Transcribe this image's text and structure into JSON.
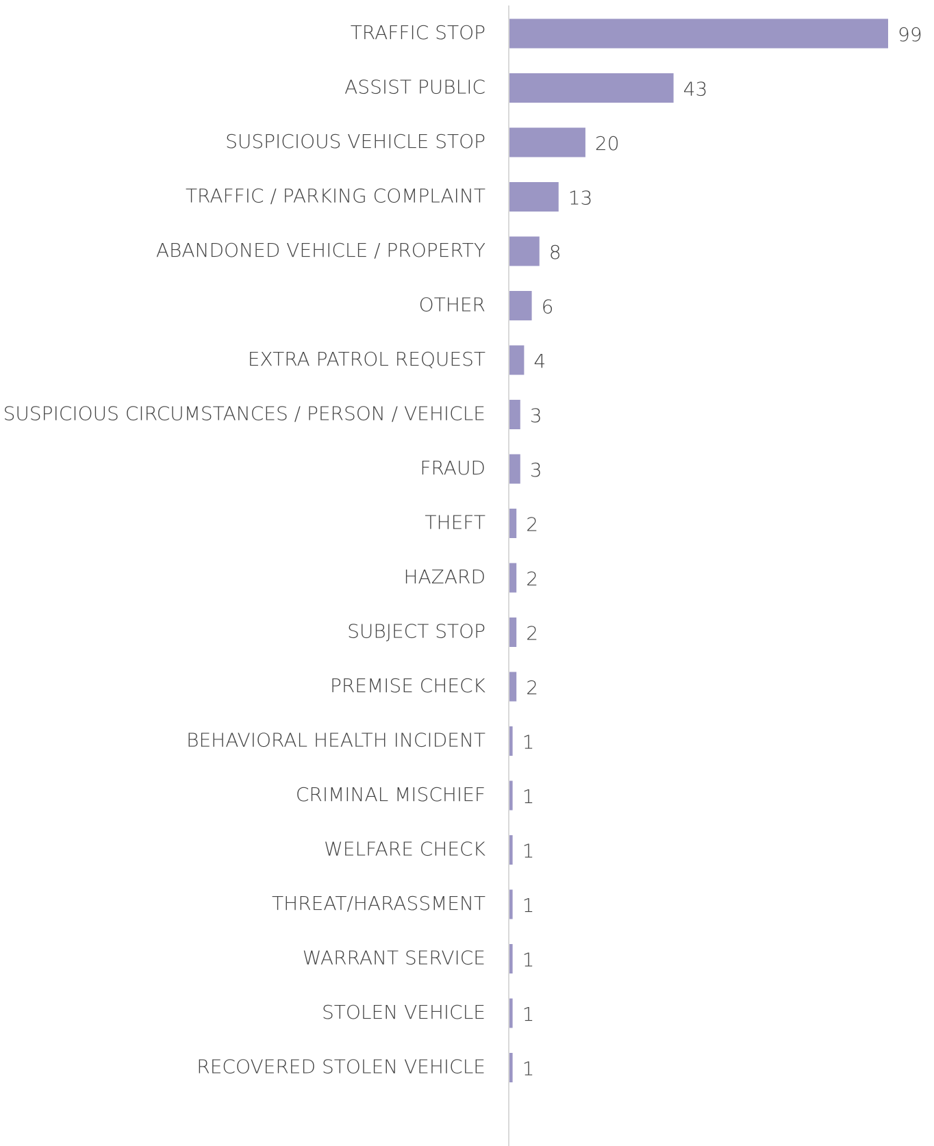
{
  "chart_data": {
    "type": "bar",
    "orientation": "horizontal",
    "categories": [
      "TRAFFIC STOP",
      "ASSIST PUBLIC",
      "SUSPICIOUS VEHICLE STOP",
      "TRAFFIC / PARKING COMPLAINT",
      "ABANDONED VEHICLE / PROPERTY",
      "OTHER",
      "EXTRA PATROL REQUEST",
      "SUSPICIOUS CIRCUMSTANCES / PERSON / VEHICLE",
      "FRAUD",
      "THEFT",
      "HAZARD",
      "SUBJECT STOP",
      "PREMISE CHECK",
      "BEHAVIORAL HEALTH INCIDENT",
      "CRIMINAL MISCHIEF",
      "WELFARE CHECK",
      "THREAT/HARASSMENT",
      "WARRANT SERVICE",
      "STOLEN VEHICLE",
      "RECOVERED STOLEN VEHICLE"
    ],
    "values": [
      99,
      43,
      20,
      13,
      8,
      6,
      4,
      3,
      3,
      2,
      2,
      2,
      2,
      1,
      1,
      1,
      1,
      1,
      1,
      1
    ],
    "color": "#9b96c4"
  }
}
